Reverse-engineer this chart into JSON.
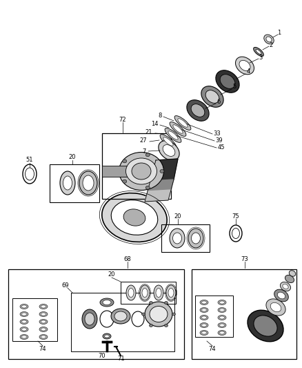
{
  "bg_color": "#ffffff",
  "fig_width": 4.38,
  "fig_height": 5.33,
  "dpi": 100
}
